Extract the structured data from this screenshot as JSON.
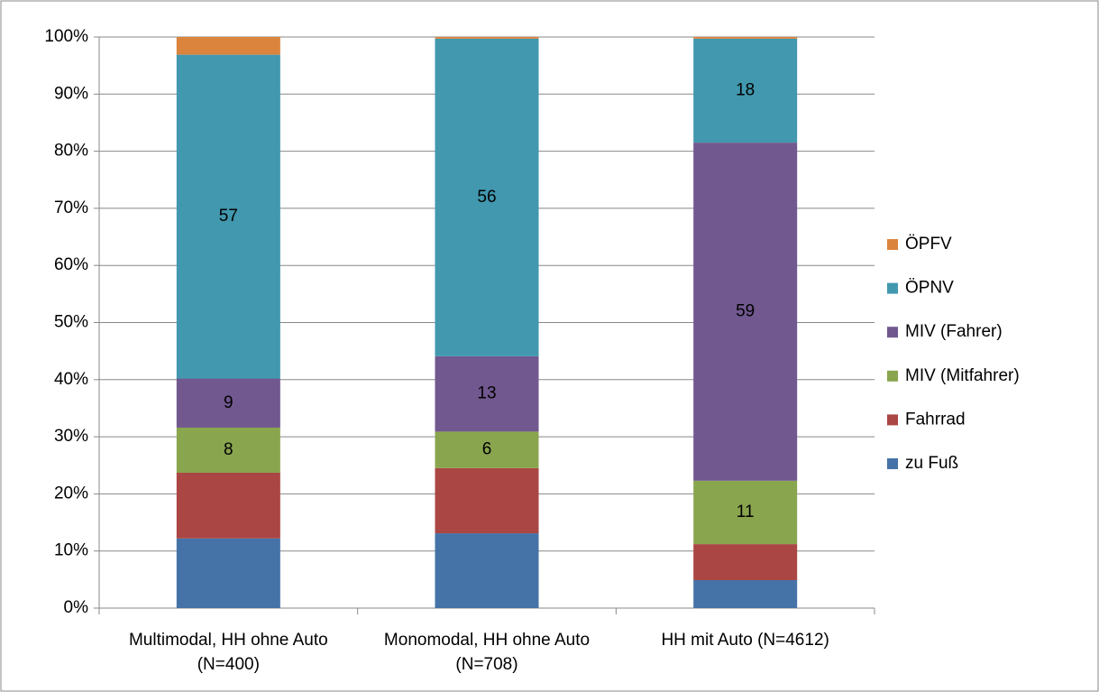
{
  "chart_data": {
    "type": "stacked_bar",
    "categories": [
      "Multimodal, HH ohne Auto (N=400)",
      "Monomodal, HH ohne Auto (N=708)",
      "HH mit Auto (N=4612)"
    ],
    "series": [
      {
        "name": "zu Fuß",
        "color": "#4572a7",
        "values": [
          12.2,
          13.1,
          4.9
        ]
      },
      {
        "name": "Fahrrad",
        "color": "#aa4643",
        "values": [
          11.5,
          11.4,
          6.3
        ]
      },
      {
        "name": "MIV (Mitfahrer)",
        "color": "#89a54e",
        "values": [
          7.9,
          6.4,
          11.1
        ],
        "value_labels": [
          "8",
          "6",
          "11"
        ]
      },
      {
        "name": "MIV (Fahrer)",
        "color": "#71588f",
        "values": [
          8.6,
          13.2,
          59.2
        ],
        "value_labels": [
          "9",
          "13",
          "59"
        ]
      },
      {
        "name": "ÖPNV",
        "color": "#4198af",
        "values": [
          56.7,
          55.6,
          18.2
        ],
        "value_labels": [
          "57",
          "56",
          "18"
        ]
      },
      {
        "name": "ÖPFV",
        "color": "#db843d",
        "values": [
          3.1,
          0.3,
          0.3
        ]
      }
    ],
    "ylim": [
      0,
      100
    ],
    "yticks": [
      {
        "value": 0,
        "label": "0%"
      },
      {
        "value": 10,
        "label": "10%"
      },
      {
        "value": 20,
        "label": "20%"
      },
      {
        "value": 30,
        "label": "30%"
      },
      {
        "value": 40,
        "label": "40%"
      },
      {
        "value": 50,
        "label": "50%"
      },
      {
        "value": 60,
        "label": "60%"
      },
      {
        "value": 70,
        "label": "70%"
      },
      {
        "value": 80,
        "label": "80%"
      },
      {
        "value": 90,
        "label": "90%"
      },
      {
        "value": 100,
        "label": "100%"
      }
    ],
    "grid": true,
    "legend": "right"
  }
}
